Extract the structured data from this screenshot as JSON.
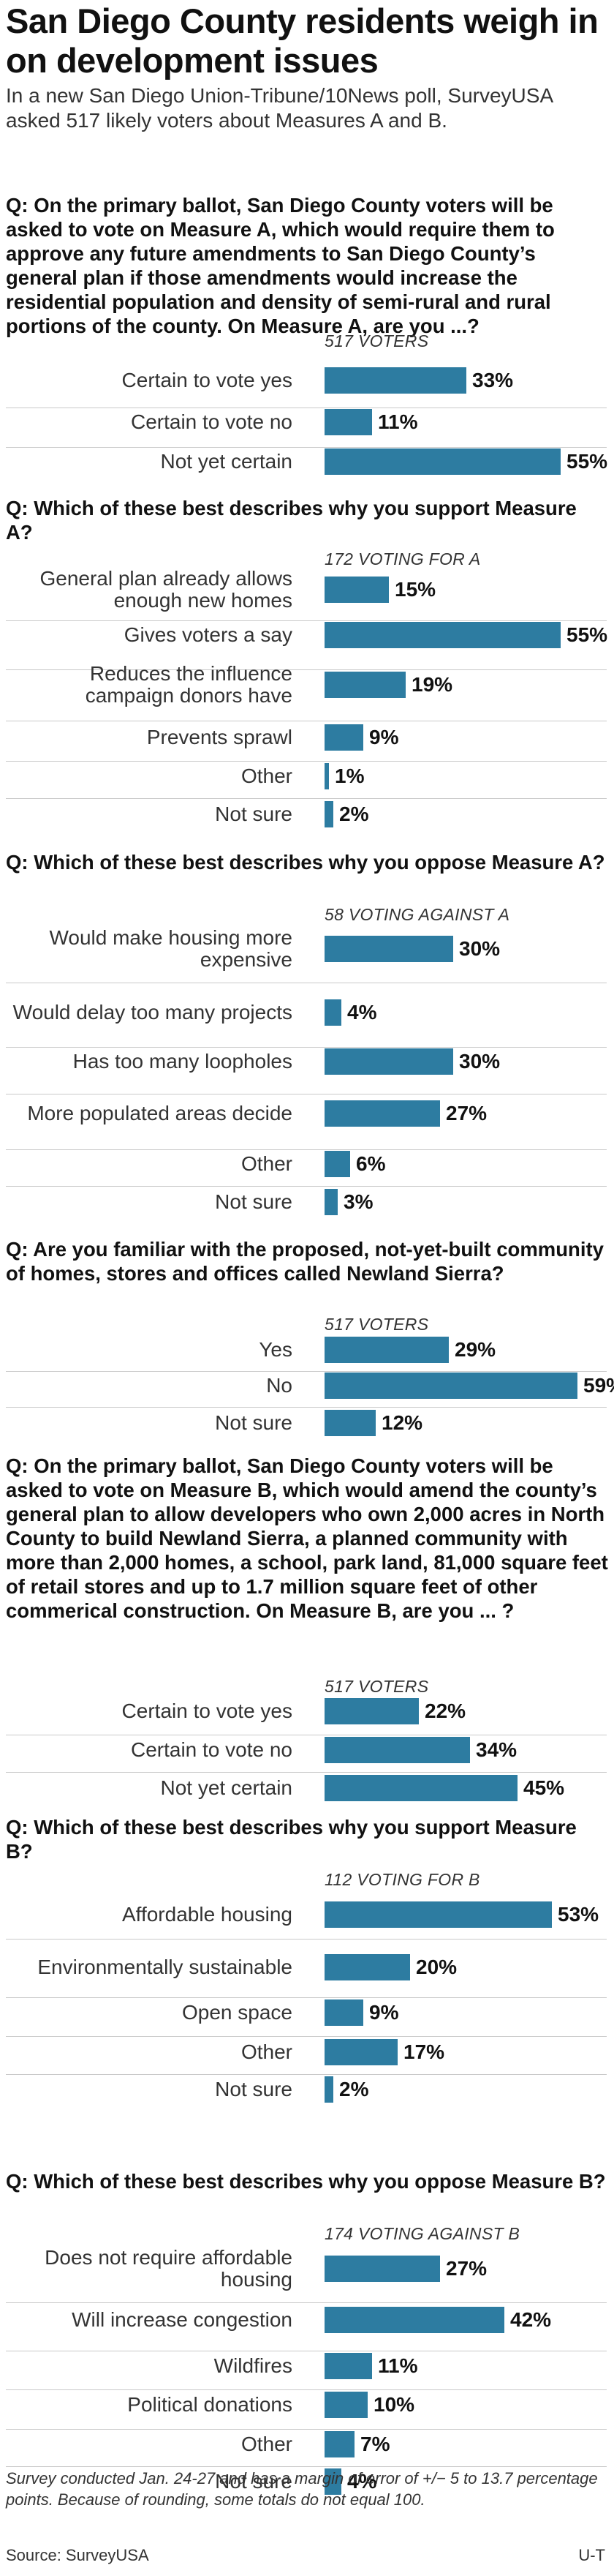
{
  "headline": "San Diego County residents weigh in on development issues",
  "intro": "In a new San Diego Union-Tribune/10News poll, SurveyUSA asked 517 likely voters about Measures A and B.",
  "footnote": "Survey conducted Jan. 24-27 and has a margin of error of +/− 5 to 13.7 percentage points. Because of rounding, some totals do not equal 100.",
  "source": "Source: SurveyUSA",
  "credit": "U-T",
  "colors": {
    "bar": "#2d7ca1",
    "text": "#1a1a1a",
    "divider": "#c9c9c9"
  },
  "chart_data": [
    {
      "type": "bar",
      "orientation": "horizontal",
      "question": "Q: On the primary ballot, San Diego County voters will be asked to vote on Measure A, which would require them to approve any future amendments to San Diego County’s general plan if those amendments would increase the residential population and density of semi-rural and rural portions of the county. On Measure A, are you ...?",
      "base": "517 VOTERS",
      "unit": "%",
      "categories": [
        "Certain to vote yes",
        "Certain to vote no",
        "Not yet certain"
      ],
      "values": [
        33,
        11,
        55
      ],
      "xlim": [
        0,
        59
      ]
    },
    {
      "type": "bar",
      "orientation": "horizontal",
      "question": "Q: Which of these best describes why you support Measure A?",
      "base": "172 VOTING FOR A",
      "unit": "%",
      "categories": [
        "General plan already allows enough new homes",
        "Gives voters a say",
        "Reduces the influence campaign donors have",
        "Prevents sprawl",
        "Other",
        "Not sure"
      ],
      "values": [
        15,
        55,
        19,
        9,
        1,
        2
      ],
      "xlim": [
        0,
        59
      ]
    },
    {
      "type": "bar",
      "orientation": "horizontal",
      "question": "Q: Which of these best describes why you oppose Measure A?",
      "base": "58 VOTING AGAINST A",
      "unit": "%",
      "categories": [
        "Would make housing more expensive",
        "Would delay too many projects",
        "Has too many loopholes",
        "More populated areas decide",
        "Other",
        "Not sure"
      ],
      "values": [
        30,
        4,
        30,
        27,
        6,
        3
      ],
      "xlim": [
        0,
        59
      ]
    },
    {
      "type": "bar",
      "orientation": "horizontal",
      "question": "Q: Are you familiar with the proposed, not-yet-built community of homes, stores and offices called Newland Sierra?",
      "base": "517 VOTERS",
      "unit": "%",
      "categories": [
        "Yes",
        "No",
        "Not sure"
      ],
      "values": [
        29,
        59,
        12
      ],
      "xlim": [
        0,
        59
      ]
    },
    {
      "type": "bar",
      "orientation": "horizontal",
      "question": "Q: On the primary ballot, San Diego County voters will be asked to vote on Measure B, which would amend the county’s general plan to allow developers who own 2,000 acres in North County to build Newland Sierra, a planned community with more than 2,000 homes, a school, park land, 81,000 square feet of retail stores and up to 1.7 million square feet of other commerical construction. On Measure B, are you ... ?",
      "base": "517 VOTERS",
      "unit": "%",
      "categories": [
        "Certain to vote yes",
        "Certain to vote no",
        "Not yet certain"
      ],
      "values": [
        22,
        34,
        45
      ],
      "xlim": [
        0,
        59
      ]
    },
    {
      "type": "bar",
      "orientation": "horizontal",
      "question": "Q: Which of these best describes why you support Measure B?",
      "base": "112 VOTING FOR B",
      "unit": "%",
      "categories": [
        "Affordable housing",
        "Environmentally sustainable",
        "Open space",
        "Other",
        "Not sure"
      ],
      "values": [
        53,
        20,
        9,
        17,
        2
      ],
      "xlim": [
        0,
        59
      ]
    },
    {
      "type": "bar",
      "orientation": "horizontal",
      "question": "Q: Which of these best describes why you oppose Measure B?",
      "base": "174 VOTING AGAINST B",
      "unit": "%",
      "categories": [
        "Does not require affordable housing",
        "Will increase congestion",
        "Wildfires",
        "Political donations",
        "Other",
        "Not sure"
      ],
      "values": [
        27,
        42,
        11,
        10,
        7,
        4
      ],
      "xlim": [
        0,
        59
      ]
    }
  ]
}
